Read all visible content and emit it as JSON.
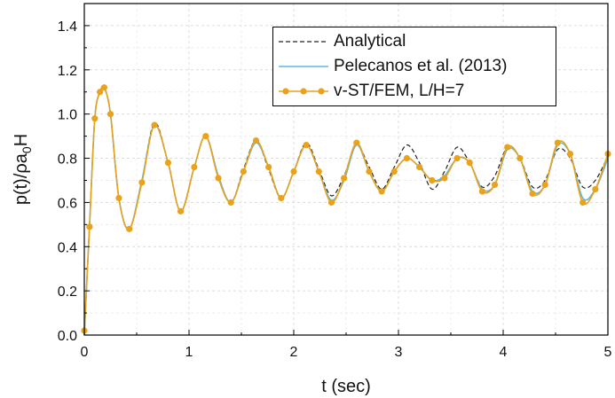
{
  "chart_data": {
    "type": "line",
    "title": "",
    "xlabel": "t (sec)",
    "ylabel": "p(t)/ρa0H",
    "xlim": [
      0,
      5
    ],
    "ylim": [
      0.0,
      1.5
    ],
    "xticks": [
      "0",
      "1",
      "2",
      "3",
      "4",
      "5"
    ],
    "yticks": [
      "0.0",
      "0.2",
      "0.4",
      "0.6",
      "0.8",
      "1.0",
      "1.2",
      "1.4"
    ],
    "grid": true,
    "legend_position": "top-right",
    "series": [
      {
        "name": "Analytical",
        "color": "#222222",
        "style": "dashed",
        "x": [
          0.0,
          0.05,
          0.1,
          0.15,
          0.19,
          0.25,
          0.33,
          0.43,
          0.55,
          0.67,
          0.8,
          0.92,
          1.05,
          1.16,
          1.28,
          1.4,
          1.52,
          1.64,
          1.76,
          1.88,
          2.0,
          2.12,
          2.24,
          2.36,
          2.48,
          2.6,
          2.72,
          2.84,
          2.96,
          3.08,
          3.2,
          3.32,
          3.44,
          3.56,
          3.68,
          3.8,
          3.92,
          4.04,
          4.16,
          4.28,
          4.4,
          4.52,
          4.64,
          4.76,
          4.88,
          5.0
        ],
        "y": [
          0.0,
          0.5,
          0.98,
          1.1,
          1.12,
          1.0,
          0.62,
          0.48,
          0.7,
          0.96,
          0.78,
          0.56,
          0.76,
          0.9,
          0.72,
          0.6,
          0.75,
          0.88,
          0.75,
          0.62,
          0.74,
          0.87,
          0.75,
          0.63,
          0.72,
          0.86,
          0.76,
          0.66,
          0.76,
          0.86,
          0.78,
          0.66,
          0.74,
          0.85,
          0.78,
          0.67,
          0.72,
          0.85,
          0.8,
          0.67,
          0.7,
          0.84,
          0.8,
          0.67,
          0.7,
          0.81
        ]
      },
      {
        "name": "Pelecanos et al. (2013)",
        "color": "#5bb8e0",
        "style": "solid",
        "x": [
          0.0,
          0.05,
          0.1,
          0.15,
          0.19,
          0.25,
          0.33,
          0.43,
          0.55,
          0.67,
          0.8,
          0.92,
          1.05,
          1.16,
          1.28,
          1.4,
          1.52,
          1.64,
          1.76,
          1.88,
          2.0,
          2.12,
          2.24,
          2.36,
          2.48,
          2.6,
          2.72,
          2.84,
          2.96,
          3.08,
          3.2,
          3.32,
          3.44,
          3.56,
          3.68,
          3.8,
          3.92,
          4.04,
          4.16,
          4.28,
          4.4,
          4.52,
          4.64,
          4.76,
          4.88,
          5.0
        ],
        "y": [
          0.0,
          0.5,
          0.98,
          1.1,
          1.12,
          1.0,
          0.62,
          0.48,
          0.7,
          0.95,
          0.78,
          0.56,
          0.76,
          0.9,
          0.72,
          0.6,
          0.74,
          0.87,
          0.76,
          0.62,
          0.74,
          0.86,
          0.74,
          0.61,
          0.7,
          0.86,
          0.74,
          0.65,
          0.74,
          0.8,
          0.76,
          0.7,
          0.72,
          0.8,
          0.78,
          0.66,
          0.68,
          0.84,
          0.8,
          0.65,
          0.68,
          0.86,
          0.82,
          0.62,
          0.66,
          0.8
        ]
      },
      {
        "name": "v-ST/FEM, L/H=7",
        "color": "#e8a21c",
        "style": "solid-markers",
        "x": [
          0.0,
          0.05,
          0.1,
          0.15,
          0.19,
          0.25,
          0.33,
          0.43,
          0.55,
          0.67,
          0.8,
          0.92,
          1.05,
          1.16,
          1.28,
          1.4,
          1.52,
          1.64,
          1.76,
          1.88,
          2.0,
          2.12,
          2.24,
          2.36,
          2.48,
          2.6,
          2.72,
          2.84,
          2.96,
          3.08,
          3.2,
          3.32,
          3.44,
          3.56,
          3.68,
          3.8,
          3.92,
          4.04,
          4.16,
          4.28,
          4.4,
          4.52,
          4.64,
          4.76,
          4.88,
          5.0
        ],
        "y": [
          0.02,
          0.49,
          0.98,
          1.1,
          1.12,
          1.0,
          0.62,
          0.48,
          0.69,
          0.95,
          0.78,
          0.56,
          0.76,
          0.9,
          0.71,
          0.6,
          0.74,
          0.88,
          0.76,
          0.62,
          0.74,
          0.86,
          0.74,
          0.6,
          0.71,
          0.87,
          0.74,
          0.65,
          0.74,
          0.8,
          0.76,
          0.7,
          0.71,
          0.8,
          0.78,
          0.65,
          0.68,
          0.85,
          0.8,
          0.64,
          0.68,
          0.87,
          0.82,
          0.6,
          0.66,
          0.82
        ]
      }
    ]
  }
}
